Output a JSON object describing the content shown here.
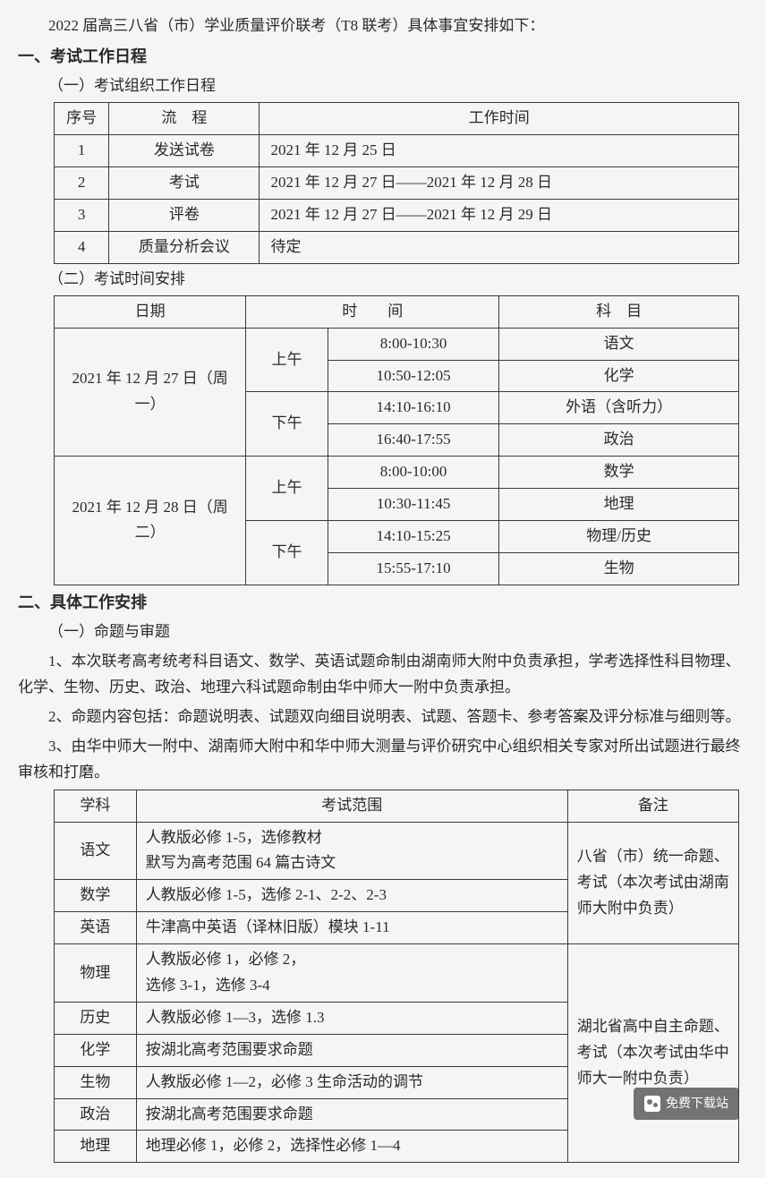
{
  "intro": "2022 届高三八省（市）学业质量评价联考（T8 联考）具体事宜安排如下：",
  "section1": {
    "title": "一、考试工作日程",
    "sub1": {
      "title": "（一）考试组织工作日程",
      "headers": [
        "序号",
        "流　程",
        "工作时间"
      ],
      "rows": [
        {
          "no": "1",
          "step": "发送试卷",
          "time": "2021 年 12 月 25 日"
        },
        {
          "no": "2",
          "step": "考试",
          "time": "2021 年 12 月 27 日——2021 年 12 月 28 日"
        },
        {
          "no": "3",
          "step": "评卷",
          "time": "2021 年 12 月 27 日——2021 年 12 月 29 日"
        },
        {
          "no": "4",
          "step": "质量分析会议",
          "time": "待定"
        }
      ]
    },
    "sub2": {
      "title": "（二）考试时间安排",
      "headers": [
        "日期",
        "时　　间",
        "科　目"
      ],
      "day1": {
        "date": "2021 年 12 月 27 日（周一）",
        "am": "上午",
        "pm": "下午",
        "slots": [
          {
            "time": "8:00-10:30",
            "subject": "语文"
          },
          {
            "time": "10:50-12:05",
            "subject": "化学"
          },
          {
            "time": "14:10-16:10",
            "subject": "外语（含听力）"
          },
          {
            "time": "16:40-17:55",
            "subject": "政治"
          }
        ]
      },
      "day2": {
        "date": "2021 年 12 月 28 日（周二）",
        "am": "上午",
        "pm": "下午",
        "slots": [
          {
            "time": "8:00-10:00",
            "subject": "数学"
          },
          {
            "time": "10:30-11:45",
            "subject": "地理"
          },
          {
            "time": "14:10-15:25",
            "subject": "物理/历史"
          },
          {
            "time": "15:55-17:10",
            "subject": "生物"
          }
        ]
      }
    }
  },
  "section2": {
    "title": "二、具体工作安排",
    "sub1_title": "（一）命题与审题",
    "para1": "1、本次联考高考统考科目语文、数学、英语试题命制由湖南师大附中负责承担，学考选择性科目物理、化学、生物、历史、政治、地理六科试题命制由华中师大一附中负责承担。",
    "para2": "2、命题内容包括：命题说明表、试题双向细目说明表、试题、答题卡、参考答案及评分标准与细则等。",
    "para3": "3、由华中师大一附中、湖南师大附中和华中师大测量与评价研究中心组织相关专家对所出试题进行最终审核和打磨。",
    "table": {
      "headers": [
        "学科",
        "考试范围",
        "备注"
      ],
      "group1_note": "八省（市）统一命题、考试（本次考试由湖南师大附中负责）",
      "group2_note": "湖北省高中自主命题、考试（本次考试由华中师大一附中负责）",
      "rows": [
        {
          "subject": "语文",
          "scope": "人教版必修 1-5，选修教材\n默写为高考范围 64 篇古诗文"
        },
        {
          "subject": "数学",
          "scope": "人教版必修 1-5，选修 2-1、2-2、2-3"
        },
        {
          "subject": "英语",
          "scope": "牛津高中英语（译林旧版）模块 1-11"
        },
        {
          "subject": "物理",
          "scope": "人教版必修 1，必修 2，\n选修 3-1，选修 3-4"
        },
        {
          "subject": "历史",
          "scope": "人教版必修 1—3，选修 1.3"
        },
        {
          "subject": "化学",
          "scope": "按湖北高考范围要求命题"
        },
        {
          "subject": "生物",
          "scope": "人教版必修 1—2，必修 3 生命活动的调节"
        },
        {
          "subject": "政治",
          "scope": "按湖北高考范围要求命题"
        },
        {
          "subject": "地理",
          "scope": "地理必修 1，必修 2，选择性必修 1—4"
        }
      ]
    }
  },
  "badge": "免费下载站"
}
